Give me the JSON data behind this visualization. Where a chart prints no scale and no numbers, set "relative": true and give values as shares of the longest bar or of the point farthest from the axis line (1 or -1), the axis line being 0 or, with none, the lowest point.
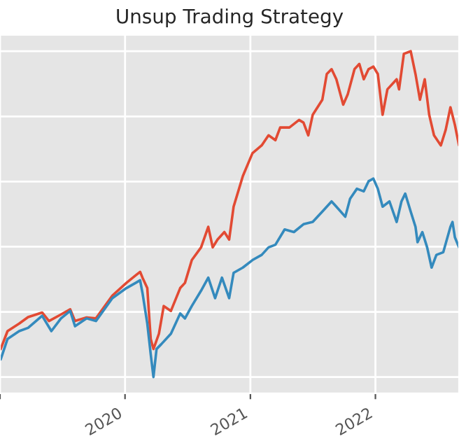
{
  "chart_data": {
    "type": "line",
    "title": "Unsup Trading Strategy",
    "relative": true,
    "grid": true,
    "legend": false,
    "xlim": [
      "2019-01-01",
      "2022-09-02"
    ],
    "xticks": [
      {
        "value": "2019-01-01",
        "label": null
      },
      {
        "value": "2020-01-01",
        "label": "2020"
      },
      {
        "value": "2021-01-01",
        "label": "2021"
      },
      {
        "value": "2022-01-01",
        "label": "2022"
      }
    ],
    "series": [
      {
        "color": "#e24a33",
        "x": [
          "2019-01-03",
          "2019-01-23",
          "2019-02-26",
          "2019-03-24",
          "2019-05-04",
          "2019-05-24",
          "2019-06-28",
          "2019-07-25",
          "2019-08-08",
          "2019-09-11",
          "2019-10-08",
          "2019-11-25",
          "2020-01-05",
          "2020-02-01",
          "2020-02-14",
          "2020-02-21",
          "2020-03-06",
          "2020-03-16",
          "2020-03-24",
          "2020-04-09",
          "2020-04-23",
          "2020-05-14",
          "2020-06-10",
          "2020-06-24",
          "2020-07-14",
          "2020-08-10",
          "2020-08-31",
          "2020-09-13",
          "2020-09-27",
          "2020-10-17",
          "2020-10-31",
          "2020-11-13",
          "2020-12-10",
          "2021-01-07",
          "2021-02-03",
          "2021-02-23",
          "2021-03-15",
          "2021-03-29",
          "2021-04-25",
          "2021-05-23",
          "2021-06-05",
          "2021-06-19",
          "2021-07-02",
          "2021-07-30",
          "2021-08-12",
          "2021-08-26",
          "2021-09-09",
          "2021-09-29",
          "2021-10-12",
          "2021-11-01",
          "2021-11-15",
          "2021-11-28",
          "2021-12-12",
          "2021-12-26",
          "2022-01-08",
          "2022-01-22",
          "2022-02-05",
          "2022-03-04",
          "2022-03-11",
          "2022-03-25",
          "2022-04-14",
          "2022-04-28",
          "2022-05-11",
          "2022-05-25",
          "2022-06-07",
          "2022-06-21",
          "2022-07-11",
          "2022-07-25",
          "2022-08-08",
          "2022-08-21",
          "2022-09-02"
        ],
        "values": [
          0.086,
          0.141,
          0.164,
          0.184,
          0.198,
          0.172,
          0.192,
          0.208,
          0.172,
          0.183,
          0.18,
          0.25,
          0.289,
          0.312,
          0.323,
          0.305,
          0.273,
          0.117,
          0.086,
          0.133,
          0.218,
          0.203,
          0.273,
          0.289,
          0.359,
          0.398,
          0.461,
          0.398,
          0.422,
          0.445,
          0.422,
          0.523,
          0.617,
          0.687,
          0.711,
          0.742,
          0.727,
          0.766,
          0.766,
          0.789,
          0.781,
          0.742,
          0.805,
          0.851,
          0.93,
          0.945,
          0.914,
          0.836,
          0.867,
          0.945,
          0.961,
          0.914,
          0.945,
          0.953,
          0.93,
          0.805,
          0.883,
          0.914,
          0.883,
          0.992,
          1,
          0.93,
          0.851,
          0.914,
          0.805,
          0.742,
          0.711,
          0.758,
          0.828,
          0.774,
          0.711
        ]
      },
      {
        "color": "#348abd",
        "x": [
          "2019-01-03",
          "2019-01-23",
          "2019-02-26",
          "2019-03-24",
          "2019-05-04",
          "2019-05-31",
          "2019-06-28",
          "2019-07-25",
          "2019-08-08",
          "2019-09-11",
          "2019-10-08",
          "2019-11-25",
          "2020-01-05",
          "2020-02-01",
          "2020-02-14",
          "2020-02-21",
          "2020-03-06",
          "2020-03-16",
          "2020-03-24",
          "2020-04-02",
          "2020-04-16",
          "2020-05-14",
          "2020-06-10",
          "2020-06-24",
          "2020-07-14",
          "2020-08-10",
          "2020-08-31",
          "2020-09-20",
          "2020-10-10",
          "2020-10-31",
          "2020-11-13",
          "2020-12-10",
          "2021-01-07",
          "2021-02-03",
          "2021-02-23",
          "2021-03-15",
          "2021-04-11",
          "2021-05-08",
          "2021-06-05",
          "2021-07-02",
          "2021-07-30",
          "2021-08-26",
          "2021-09-09",
          "2021-10-05",
          "2021-10-19",
          "2021-11-08",
          "2021-11-28",
          "2021-12-12",
          "2021-12-26",
          "2022-01-08",
          "2022-01-22",
          "2022-02-11",
          "2022-03-04",
          "2022-03-18",
          "2022-03-29",
          "2022-04-14",
          "2022-04-28",
          "2022-05-04",
          "2022-05-18",
          "2022-06-01",
          "2022-06-14",
          "2022-06-28",
          "2022-07-18",
          "2022-08-08",
          "2022-08-14",
          "2022-08-21",
          "2022-09-02"
        ],
        "values": [
          0.054,
          0.117,
          0.141,
          0.151,
          0.188,
          0.141,
          0.18,
          0.203,
          0.156,
          0.18,
          0.172,
          0.242,
          0.273,
          0.289,
          0.297,
          0.258,
          0.164,
          0.07,
          0,
          0.086,
          0.101,
          0.133,
          0.195,
          0.18,
          0.218,
          0.265,
          0.305,
          0.242,
          0.305,
          0.242,
          0.32,
          0.336,
          0.359,
          0.375,
          0.398,
          0.406,
          0.453,
          0.445,
          0.469,
          0.476,
          0.508,
          0.539,
          0.523,
          0.492,
          0.547,
          0.578,
          0.57,
          0.601,
          0.609,
          0.578,
          0.523,
          0.539,
          0.476,
          0.539,
          0.563,
          0.508,
          0.461,
          0.414,
          0.445,
          0.398,
          0.336,
          0.375,
          0.383,
          0.461,
          0.476,
          0.429,
          0.398
        ]
      }
    ]
  }
}
